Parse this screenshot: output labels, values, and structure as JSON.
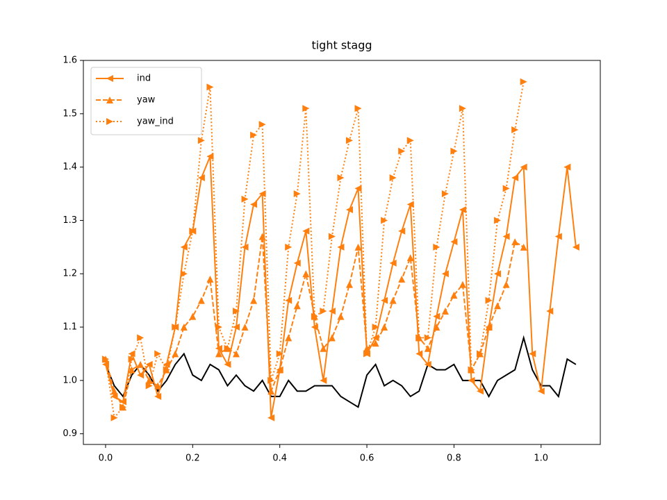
{
  "chart_data": {
    "type": "line",
    "title": "tight stagg",
    "x": [
      0.0,
      0.02,
      0.04,
      0.06,
      0.08,
      0.1,
      0.12,
      0.14,
      0.16,
      0.18,
      0.2,
      0.22,
      0.24,
      0.26,
      0.28,
      0.3,
      0.32,
      0.34,
      0.36,
      0.38,
      0.4,
      0.42,
      0.44,
      0.46,
      0.48,
      0.5,
      0.52,
      0.54,
      0.56,
      0.58,
      0.6,
      0.62,
      0.64,
      0.66,
      0.68,
      0.7,
      0.72,
      0.74,
      0.76,
      0.78,
      0.8,
      0.82,
      0.84,
      0.86,
      0.88,
      0.9,
      0.92,
      0.94,
      0.96,
      0.98,
      1.0,
      1.02,
      1.04,
      1.06,
      1.08
    ],
    "series": [
      {
        "color": "#000000",
        "linestyle": "solid",
        "values": [
          1.03,
          0.99,
          0.97,
          1.01,
          1.03,
          1.01,
          0.98,
          1.0,
          1.03,
          1.05,
          1.01,
          1.0,
          1.03,
          1.02,
          0.99,
          1.01,
          0.99,
          0.98,
          1.0,
          0.97,
          0.97,
          1.0,
          0.98,
          0.98,
          0.99,
          0.99,
          0.99,
          0.97,
          0.96,
          0.95,
          1.01,
          1.03,
          0.99,
          1.0,
          0.99,
          0.97,
          0.98,
          1.03,
          1.02,
          1.02,
          1.03,
          1.0,
          1.0,
          1.0,
          0.97,
          1.0,
          1.01,
          1.02,
          1.08,
          1.02,
          0.99,
          0.99,
          0.97,
          1.04,
          1.03
        ]
      },
      {
        "name": "ind",
        "color": "#ff7f0e",
        "linestyle": "solid",
        "marker": "<",
        "values": [
          1.03,
          0.97,
          0.96,
          1.05,
          1.01,
          1.03,
          0.97,
          1.03,
          1.1,
          1.25,
          1.28,
          1.38,
          1.42,
          1.06,
          1.03,
          1.1,
          1.25,
          1.33,
          1.35,
          0.93,
          1.02,
          1.15,
          1.22,
          1.28,
          1.1,
          1.0,
          1.13,
          1.25,
          1.32,
          1.36,
          1.05,
          1.08,
          1.15,
          1.22,
          1.28,
          1.33,
          1.05,
          1.03,
          1.12,
          1.2,
          1.26,
          1.32,
          1.0,
          0.98,
          1.1,
          1.2,
          1.27,
          1.38,
          1.4,
          1.05,
          0.98,
          1.13,
          1.27,
          1.4,
          1.25
        ]
      },
      {
        "name": "yaw",
        "color": "#ff7f0e",
        "linestyle": "dashed",
        "marker": "^",
        "values": [
          1.04,
          0.98,
          0.95,
          1.02,
          1.03,
          1.0,
          0.99,
          1.02,
          1.05,
          1.1,
          1.12,
          1.15,
          1.19,
          1.05,
          1.06,
          1.05,
          1.1,
          1.15,
          1.27,
          0.98,
          1.02,
          1.08,
          1.14,
          1.2,
          1.12,
          1.06,
          1.08,
          1.12,
          1.18,
          1.25,
          1.06,
          1.07,
          1.1,
          1.15,
          1.19,
          1.23,
          1.08,
          1.06,
          1.1,
          1.13,
          1.16,
          1.18,
          1.02,
          1.05,
          1.1,
          1.14,
          1.18,
          1.26,
          1.25,
          null,
          null,
          null,
          null,
          null,
          null
        ]
      },
      {
        "name": "yaw_ind",
        "color": "#ff7f0e",
        "linestyle": "dotted",
        "marker": ">",
        "values": [
          1.04,
          0.93,
          0.95,
          1.04,
          1.08,
          0.99,
          1.05,
          1.02,
          1.1,
          1.2,
          1.28,
          1.45,
          1.55,
          1.1,
          1.06,
          1.13,
          1.34,
          1.46,
          1.48,
          1.0,
          1.05,
          1.25,
          1.35,
          1.51,
          1.12,
          1.13,
          1.27,
          1.38,
          1.45,
          1.51,
          1.05,
          1.1,
          1.3,
          1.38,
          1.43,
          1.45,
          1.08,
          1.08,
          1.25,
          1.35,
          1.43,
          1.51,
          1.02,
          1.05,
          1.15,
          1.3,
          1.36,
          1.47,
          1.56,
          null,
          null,
          null,
          null,
          null,
          null
        ]
      }
    ],
    "xlim": [
      -0.051,
      1.136
    ],
    "xticks": [
      {
        "value": 0,
        "label": "0.0"
      },
      0.2,
      0.4,
      0.6,
      0.8,
      {
        "value": 1,
        "label": "1.0"
      }
    ],
    "ylim": [
      0.88,
      1.6
    ],
    "yticks": [
      0.9,
      {
        "value": 1,
        "label": "1.0"
      },
      1.1,
      1.2,
      1.3,
      1.4,
      1.5,
      1.6
    ],
    "grid": false,
    "legend": "upper left"
  }
}
